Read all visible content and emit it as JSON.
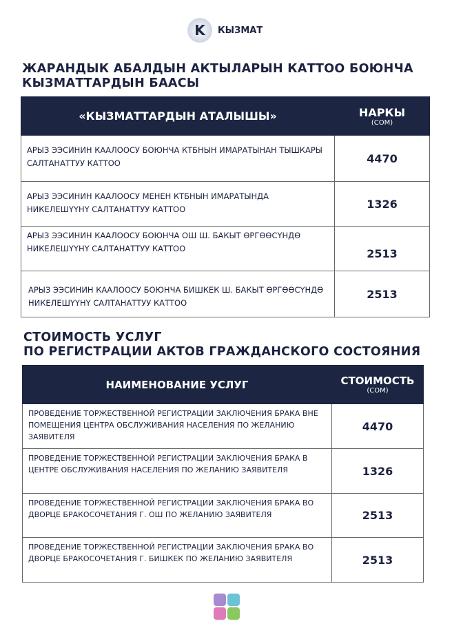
{
  "brand": {
    "name": "КЫЗМАТ",
    "mark": "K"
  },
  "section1": {
    "title_line1": "ЖАРАНДЫК АБАЛДЫН АКТЫЛАРЫН КАТТОО БОЮНЧА",
    "title_line2": "КЫЗМАТТАРДЫН БААСЫ",
    "headers": {
      "name": "«КЫЗМАТТАРДЫН АТАЛЫШЫ»",
      "price": "НАРКЫ",
      "unit": "(СОМ)"
    },
    "rows": [
      {
        "desc": "АРЫЗ ЭЭСИНИН КААЛООСУ БОЮНЧА КТБНЫН ИМАРАТЫНАН ТЫШКАРЫ САЛТАНАТТУУ КАТТОО",
        "price": "4470"
      },
      {
        "desc": "АРЫЗ ЭЭСИНИН КААЛООСУ МЕНЕН КТБНЫН ИМАРАТЫНДА НИКЕЛЕШҮҮНҮ САЛТАНАТТУУ КАТТОО",
        "price": "1326"
      },
      {
        "desc": "АРЫЗ ЭЭСИНИН КААЛООСУ БОЮНЧА ОШ Ш. БАКЫТ ӨРГӨӨСҮНДӨ НИКЕЛЕШҮҮНҮ САЛТАНАТТУУ КАТТОО",
        "price": "2513"
      },
      {
        "desc": "АРЫЗ ЭЭСИНИН КААЛООСУ БОЮНЧА БИШКЕК Ш. БАКЫТ ӨРГӨӨСҮНДӨ  НИКЕЛЕШҮҮНҮ САЛТАНАТТУУ КАТТОО",
        "price": "2513"
      }
    ]
  },
  "section2": {
    "title_line1": "СТОИМОСТЬ УСЛУГ",
    "title_line2": "ПО РЕГИСТРАЦИИ АКТОВ ГРАЖДАНСКОГО СОСТОЯНИЯ",
    "headers": {
      "name": "НАИМЕНОВАНИЕ УСЛУГ",
      "price": "СТОИМОСТЬ",
      "unit": "(СОМ)"
    },
    "rows": [
      {
        "desc": "ПРОВЕДЕНИЕ ТОРЖЕСТВЕННОЙ РЕГИСТРАЦИИ ЗАКЛЮЧЕНИЯ БРАКА ВНЕ ПОМЕЩЕНИЯ ЦЕНТРА ОБСЛУЖИВАНИЯ НАСЕЛЕНИЯ ПО ЖЕЛАНИЮ ЗАЯВИТЕЛЯ",
        "price": "4470"
      },
      {
        "desc": "ПРОВЕДЕНИЕ ТОРЖЕСТВЕННОЙ РЕГИСТРАЦИИ ЗАКЛЮЧЕНИЯ БРАКА В ЦЕНТРЕ ОБСЛУЖИВАНИЯ НАСЕЛЕНИЯ ПО ЖЕЛАНИЮ ЗАЯВИТЕЛЯ",
        "price": "1326"
      },
      {
        "desc": "ПРОВЕДЕНИЕ ТОРЖЕСТВЕННОЙ РЕГИСТРАЦИИ ЗАКЛЮЧЕНИЯ БРАКА ВО ДВОРЦЕ БРАКОСОЧЕТАНИЯ Г. ОШ ПО ЖЕЛАНИЮ ЗАЯВИТЕЛЯ",
        "price": "2513"
      },
      {
        "desc": "ПРОВЕДЕНИЕ ТОРЖЕСТВЕННОЙ РЕГИСТРАЦИИ ЗАКЛЮЧЕНИЯ БРАКА ВО ДВОРЦЕ БРАКОСОЧЕТАНИЯ Г. БИШКЕК ПО ЖЕЛАНИЮ ЗАЯВИТЕЛЯ",
        "price": "2513"
      }
    ]
  },
  "colors": {
    "header_bg": "#1c2541",
    "footer_logo": [
      "#a78bd0",
      "#6cc3d8",
      "#e07ab8",
      "#8cc860"
    ]
  }
}
